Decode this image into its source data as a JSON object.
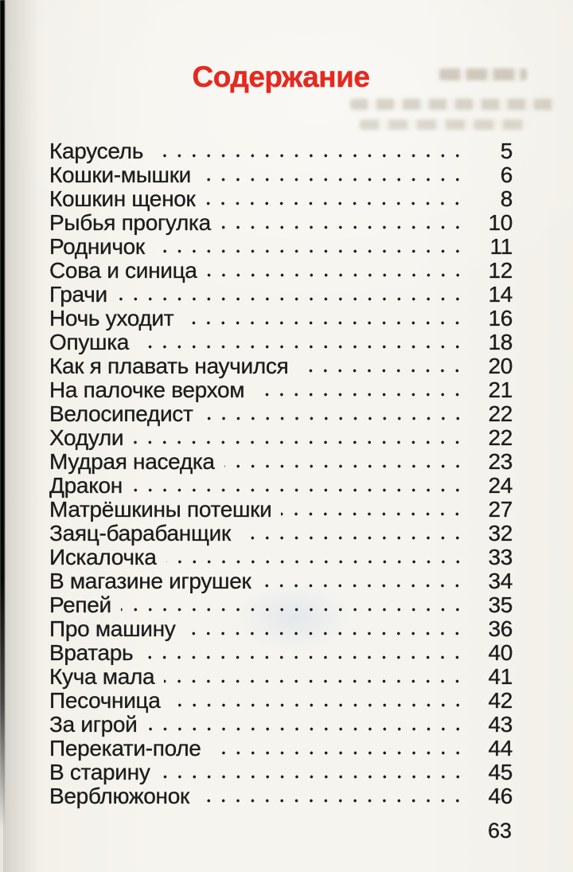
{
  "toc": {
    "title": "Содержание",
    "entries": [
      {
        "label": "Карусель",
        "page": "5"
      },
      {
        "label": "Кошки-мышки",
        "page": "6"
      },
      {
        "label": "Кошкин щенок",
        "page": "8"
      },
      {
        "label": "Рыбья прогулка",
        "page": "10"
      },
      {
        "label": "Родничок",
        "page": "11"
      },
      {
        "label": "Сова и синица",
        "page": "12"
      },
      {
        "label": "Грачи",
        "page": "14"
      },
      {
        "label": "Ночь уходит",
        "page": "16"
      },
      {
        "label": "Опушка",
        "page": "18"
      },
      {
        "label": "Как я плавать научился",
        "page": "20"
      },
      {
        "label": "На палочке верхом",
        "page": "21"
      },
      {
        "label": "Велосипедист",
        "page": "22"
      },
      {
        "label": "Ходули",
        "page": "22"
      },
      {
        "label": "Мудрая наседка",
        "page": "23"
      },
      {
        "label": "Дракон",
        "page": "24"
      },
      {
        "label": "Матрёшкины потешки",
        "page": "27"
      },
      {
        "label": "Заяц-барабанщик",
        "page": "32"
      },
      {
        "label": "Искалочка",
        "page": "33"
      },
      {
        "label": "В магазине игрушек",
        "page": "34"
      },
      {
        "label": "Репей",
        "page": "35"
      },
      {
        "label": "Про машину",
        "page": "36"
      },
      {
        "label": "Вратарь",
        "page": "40"
      },
      {
        "label": "Куча мала",
        "page": "41"
      },
      {
        "label": "Песочница",
        "page": "42"
      },
      {
        "label": "За игрой",
        "page": "43"
      },
      {
        "label": "Перекати-поле",
        "page": "44"
      },
      {
        "label": "В старину",
        "page": "45"
      },
      {
        "label": "Верблюжонок",
        "page": "46"
      }
    ]
  },
  "page": {
    "number": "63"
  },
  "colors": {
    "title_red": "#e42a20",
    "text_ink": "#1c1c1c",
    "paper": "#f5f3ed"
  }
}
